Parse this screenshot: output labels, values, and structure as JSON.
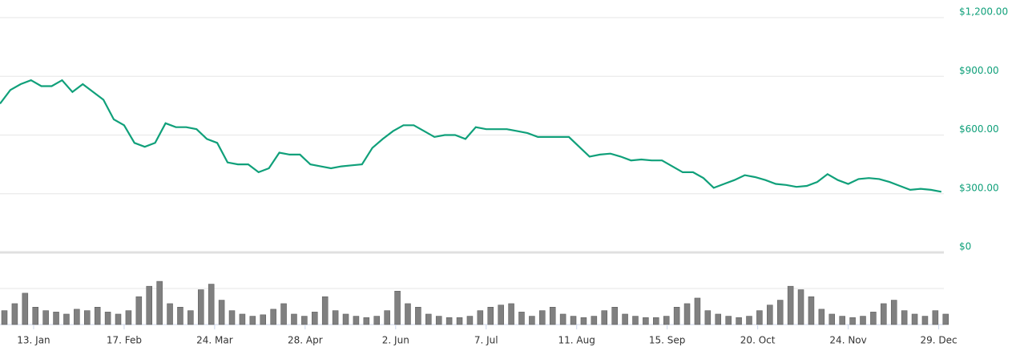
{
  "chart_data": [
    {
      "type": "line",
      "color": "#10a07a",
      "grid": true,
      "x": [
        0,
        4,
        8,
        12,
        16,
        20,
        24,
        28,
        32,
        36,
        40,
        44,
        48,
        52,
        56,
        60,
        64,
        68,
        72,
        76,
        80,
        84,
        88,
        92,
        96,
        100,
        104,
        108,
        112,
        116,
        120,
        124,
        128,
        132,
        136,
        140,
        144,
        148,
        152,
        156,
        160,
        164,
        168,
        172,
        176,
        180,
        184,
        188,
        192,
        196,
        200,
        204,
        208,
        212,
        216,
        220,
        224,
        228,
        232,
        236,
        240,
        244,
        248,
        252,
        256,
        260,
        264,
        268,
        272,
        276,
        280,
        284,
        288,
        292,
        296,
        300,
        304,
        308,
        312,
        316,
        320,
        324,
        328,
        332,
        336,
        340,
        344,
        348,
        352,
        356,
        360,
        364
      ],
      "values": [
        760,
        830,
        860,
        880,
        850,
        850,
        880,
        820,
        860,
        820,
        780,
        680,
        650,
        560,
        540,
        560,
        660,
        640,
        640,
        630,
        580,
        560,
        460,
        450,
        450,
        410,
        430,
        510,
        500,
        500,
        450,
        440,
        430,
        440,
        445,
        450,
        534,
        580,
        620,
        650,
        650,
        620,
        590,
        600,
        600,
        580,
        640,
        630,
        630,
        630,
        620,
        610,
        590,
        590,
        590,
        590,
        540,
        490,
        500,
        505,
        490,
        470,
        475,
        470,
        470,
        440,
        410,
        410,
        380,
        330,
        350,
        370,
        395,
        385,
        370,
        350,
        345,
        335,
        340,
        360,
        400,
        370,
        350,
        375,
        380,
        375,
        360,
        340,
        320,
        325,
        320,
        310
      ],
      "xlim": [
        0,
        365
      ],
      "ylim": [
        0,
        1200
      ],
      "yticks": [
        {
          "value": 0,
          "label": "$0"
        },
        {
          "value": 300,
          "label": "$300.00"
        },
        {
          "value": 600,
          "label": "$600.00"
        },
        {
          "value": 900,
          "label": "$900.00"
        },
        {
          "value": 1200,
          "label": "$1,200.00"
        }
      ]
    },
    {
      "type": "bar",
      "color": "#808080",
      "x": [
        0,
        4,
        8,
        12,
        16,
        20,
        24,
        28,
        32,
        36,
        40,
        44,
        48,
        52,
        56,
        60,
        64,
        68,
        72,
        76,
        80,
        84,
        88,
        92,
        96,
        100,
        104,
        108,
        112,
        116,
        120,
        124,
        128,
        132,
        136,
        140,
        144,
        148,
        152,
        156,
        160,
        164,
        168,
        172,
        176,
        180,
        184,
        188,
        192,
        196,
        200,
        204,
        208,
        212,
        216,
        220,
        224,
        228,
        232,
        236,
        240,
        244,
        248,
        252,
        256,
        260,
        264,
        268,
        272,
        276,
        280,
        284,
        288,
        292,
        296,
        300,
        304,
        308,
        312,
        316,
        320,
        324,
        328,
        332,
        336,
        340,
        344,
        348,
        352,
        356,
        360,
        364
      ],
      "values": [
        20,
        30,
        45,
        25,
        20,
        18,
        15,
        22,
        20,
        25,
        18,
        15,
        20,
        40,
        55,
        62,
        30,
        25,
        20,
        50,
        58,
        35,
        20,
        15,
        12,
        14,
        22,
        30,
        15,
        12,
        18,
        40,
        20,
        15,
        12,
        10,
        12,
        20,
        48,
        30,
        25,
        15,
        12,
        10,
        10,
        12,
        20,
        25,
        28,
        30,
        18,
        12,
        20,
        25,
        15,
        12,
        10,
        12,
        20,
        25,
        15,
        12,
        10,
        10,
        12,
        25,
        30,
        38,
        20,
        15,
        12,
        10,
        12,
        20,
        28,
        35,
        55,
        50,
        40,
        22,
        15,
        12,
        10,
        12,
        18,
        30,
        35,
        20,
        15,
        12,
        20,
        15
      ],
      "xlim": [
        0,
        365
      ],
      "ylim": [
        0,
        100
      ],
      "xticks": [
        {
          "value": 13,
          "label": "13. Jan"
        },
        {
          "value": 48,
          "label": "17. Feb"
        },
        {
          "value": 83,
          "label": "24. Mar"
        },
        {
          "value": 118,
          "label": "28. Apr"
        },
        {
          "value": 153,
          "label": "2. Jun"
        },
        {
          "value": 188,
          "label": "7. Jul"
        },
        {
          "value": 223,
          "label": "11. Aug"
        },
        {
          "value": 258,
          "label": "15. Sep"
        },
        {
          "value": 293,
          "label": "20. Oct"
        },
        {
          "value": 328,
          "label": "24. Nov"
        },
        {
          "value": 363,
          "label": "29. Dec"
        }
      ]
    }
  ]
}
